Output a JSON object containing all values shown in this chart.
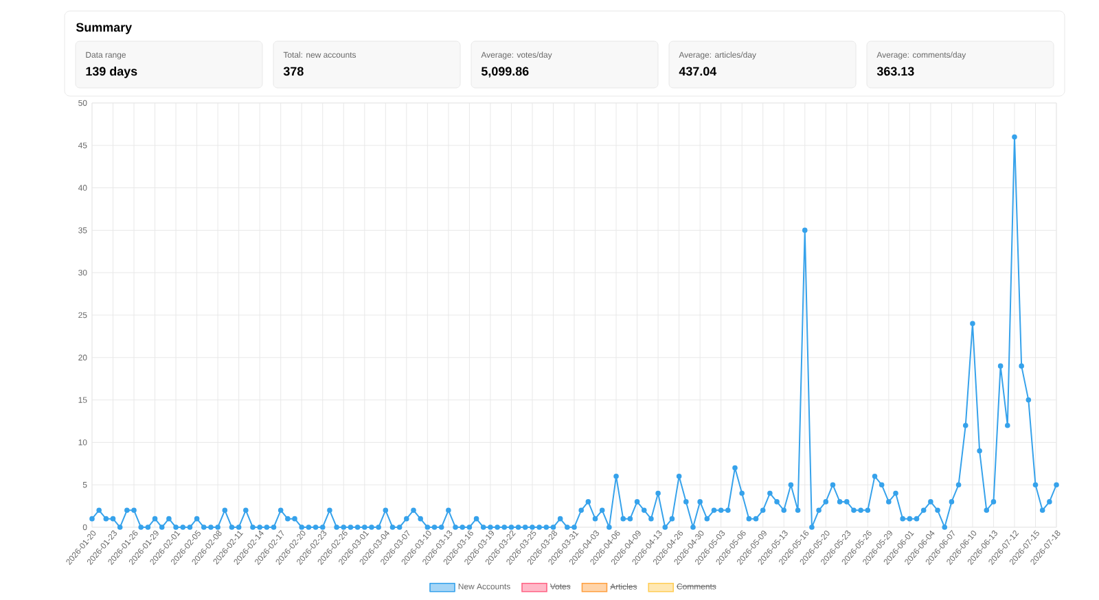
{
  "chart_data": [
    {
      "type": "other",
      "title": "Summary",
      "annotations": [
        "Data range",
        "139 days",
        "Total: new accounts",
        "378",
        "Average: votes/day",
        "5,099.86",
        "Average: articles/day",
        "437.04",
        "Average: comments/day",
        "363.13"
      ]
    },
    {
      "type": "line",
      "categories": [
        "2026-01-20",
        null,
        null,
        "2026-01-23",
        null,
        null,
        "2026-01-26",
        null,
        null,
        "2026-01-29",
        null,
        null,
        "2026-02-01",
        null,
        null,
        "2026-02-05",
        null,
        null,
        "2026-02-08",
        null,
        null,
        "2026-02-11",
        null,
        null,
        "2026-02-14",
        null,
        null,
        "2026-02-17",
        null,
        null,
        "2026-02-20",
        null,
        null,
        "2026-02-23",
        null,
        null,
        "2026-02-26",
        null,
        null,
        "2026-03-01",
        null,
        null,
        "2026-03-04",
        null,
        null,
        "2026-03-07",
        null,
        null,
        "2026-03-10",
        null,
        null,
        "2026-03-13",
        null,
        null,
        "2026-03-16",
        null,
        null,
        "2026-03-19",
        null,
        null,
        "2026-03-22",
        null,
        null,
        "2026-03-25",
        null,
        null,
        "2026-03-28",
        null,
        null,
        "2026-03-31",
        null,
        null,
        "2026-04-03",
        null,
        null,
        "2026-04-06",
        null,
        null,
        "2026-04-09",
        null,
        null,
        "2026-04-13",
        null,
        null,
        "2026-04-26",
        null,
        null,
        "2026-04-30",
        null,
        null,
        "2026-05-03",
        null,
        null,
        "2026-05-06",
        null,
        null,
        "2026-05-09",
        null,
        null,
        "2026-05-13",
        null,
        null,
        "2026-05-16",
        null,
        null,
        "2026-05-20",
        null,
        null,
        "2026-05-23",
        null,
        null,
        "2026-05-26",
        null,
        null,
        "2026-05-29",
        null,
        null,
        "2026-06-01",
        null,
        null,
        "2026-06-04",
        null,
        null,
        "2026-06-07",
        null,
        null,
        "2026-06-10",
        null,
        null,
        "2026-06-13",
        null,
        null,
        "2026-07-12",
        null,
        null,
        "2026-07-15",
        null,
        null,
        "2026-07-18"
      ],
      "series": [
        {
          "name": "New Accounts",
          "color": "#36a2eb",
          "values": [
            1,
            2,
            1,
            1,
            0,
            2,
            2,
            0,
            0,
            1,
            0,
            1,
            0,
            0,
            0,
            1,
            0,
            0,
            0,
            2,
            0,
            0,
            2,
            0,
            0,
            0,
            0,
            2,
            1,
            1,
            0,
            0,
            0,
            0,
            2,
            0,
            0,
            0,
            0,
            0,
            0,
            0,
            2,
            0,
            0,
            1,
            2,
            1,
            0,
            0,
            0,
            2,
            0,
            0,
            0,
            1,
            0,
            0,
            0,
            0,
            0,
            0,
            0,
            0,
            0,
            0,
            0,
            1,
            0,
            0,
            2,
            3,
            1,
            2,
            0,
            6,
            1,
            1,
            3,
            2,
            1,
            4,
            0,
            1,
            6,
            3,
            0,
            3,
            1,
            2,
            2,
            2,
            7,
            4,
            1,
            1,
            2,
            4,
            3,
            2,
            5,
            2,
            35,
            0,
            2,
            3,
            5,
            3,
            3,
            2,
            2,
            2,
            6,
            5,
            3,
            4,
            1,
            1,
            1,
            2,
            3,
            2,
            0,
            3,
            5,
            12,
            24,
            9,
            2,
            3,
            19,
            12,
            46,
            19,
            15,
            5,
            2,
            3,
            5
          ]
        },
        {
          "name": "Votes",
          "color": "#ff6384",
          "values": [
            null,
            null,
            null,
            null,
            null,
            null,
            null,
            null,
            null,
            null,
            null,
            null,
            null,
            null,
            null,
            null,
            null,
            null,
            null,
            null,
            null,
            null,
            null,
            null,
            null,
            null,
            null,
            null,
            null,
            null,
            null,
            null,
            null,
            null,
            null,
            null,
            null,
            null,
            null,
            null,
            null,
            null,
            null,
            null,
            null,
            null,
            null,
            null,
            null,
            null,
            null,
            null,
            null,
            null,
            null,
            null,
            null,
            null,
            null,
            null,
            null,
            null,
            null,
            null,
            null,
            null,
            null,
            null,
            null,
            null,
            null,
            null,
            null,
            null,
            null,
            null,
            null,
            null,
            null,
            null,
            null,
            null,
            null,
            null,
            null,
            null,
            null,
            null,
            null,
            null,
            null,
            null,
            null,
            null,
            null,
            null,
            null,
            null,
            null,
            null,
            null,
            null,
            null,
            null,
            null,
            null,
            null,
            null,
            null,
            null,
            null,
            null,
            null,
            null,
            null,
            null,
            null,
            null,
            null,
            null,
            null,
            null,
            null,
            null,
            null,
            null,
            null,
            null,
            null,
            null,
            null,
            null,
            null,
            null,
            null,
            null,
            null,
            null,
            null
          ]
        },
        {
          "name": "Articles",
          "color": "#ff9f40",
          "values": [
            null,
            null,
            null,
            null,
            null,
            null,
            null,
            null,
            null,
            null,
            null,
            null,
            null,
            null,
            null,
            null,
            null,
            null,
            null,
            null,
            null,
            null,
            null,
            null,
            null,
            null,
            null,
            null,
            null,
            null,
            null,
            null,
            null,
            null,
            null,
            null,
            null,
            null,
            null,
            null,
            null,
            null,
            null,
            null,
            null,
            null,
            null,
            null,
            null,
            null,
            null,
            null,
            null,
            null,
            null,
            null,
            null,
            null,
            null,
            null,
            null,
            null,
            null,
            null,
            null,
            null,
            null,
            null,
            null,
            null,
            null,
            null,
            null,
            null,
            null,
            null,
            null,
            null,
            null,
            null,
            null,
            null,
            null,
            null,
            null,
            null,
            null,
            null,
            null,
            null,
            null,
            null,
            null,
            null,
            null,
            null,
            null,
            null,
            null,
            null,
            null,
            null,
            null,
            null,
            null,
            null,
            null,
            null,
            null,
            null,
            null,
            null,
            null,
            null,
            null,
            null,
            null,
            null,
            null,
            null,
            null,
            null,
            null,
            null,
            null,
            null,
            null,
            null,
            null,
            null,
            null,
            null,
            null,
            null,
            null,
            null,
            null,
            null,
            null
          ]
        },
        {
          "name": "Comments",
          "color": "#ffcd56",
          "values": [
            null,
            null,
            null,
            null,
            null,
            null,
            null,
            null,
            null,
            null,
            null,
            null,
            null,
            null,
            null,
            null,
            null,
            null,
            null,
            null,
            null,
            null,
            null,
            null,
            null,
            null,
            null,
            null,
            null,
            null,
            null,
            null,
            null,
            null,
            null,
            null,
            null,
            null,
            null,
            null,
            null,
            null,
            null,
            null,
            null,
            null,
            null,
            null,
            null,
            null,
            null,
            null,
            null,
            null,
            null,
            null,
            null,
            null,
            null,
            null,
            null,
            null,
            null,
            null,
            null,
            null,
            null,
            null,
            null,
            null,
            null,
            null,
            null,
            null,
            null,
            null,
            null,
            null,
            null,
            null,
            null,
            null,
            null,
            null,
            null,
            null,
            null,
            null,
            null,
            null,
            null,
            null,
            null,
            null,
            null,
            null,
            null,
            null,
            null,
            null,
            null,
            null,
            null,
            null,
            null,
            null,
            null,
            null,
            null,
            null,
            null,
            null,
            null,
            null,
            null,
            null,
            null,
            null,
            null,
            null,
            null,
            null,
            null,
            null,
            null,
            null,
            null,
            null,
            null,
            null,
            null,
            null,
            null,
            null,
            null,
            null,
            null,
            null,
            null
          ]
        }
      ],
      "ylim": [
        0,
        50
      ],
      "yticks": [
        0,
        5,
        10,
        15,
        20,
        25,
        30,
        35,
        40,
        45,
        50
      ],
      "grid": true,
      "legend": "bottom",
      "marker": "circle",
      "line_style": "solid"
    }
  ]
}
